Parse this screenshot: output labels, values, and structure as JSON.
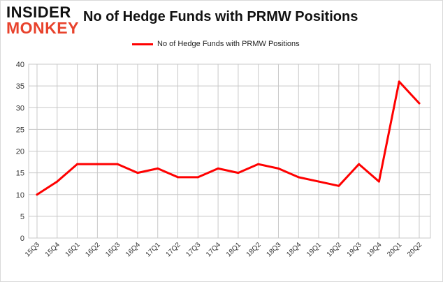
{
  "logo": {
    "line1": "INSIDER",
    "line2": "MONKEY"
  },
  "colors": {
    "series": "#ff0000",
    "grid": "#c8c8c8",
    "logo_accent": "#e8422c"
  },
  "chart_data": {
    "type": "line",
    "title": "No of Hedge Funds with PRMW Positions",
    "xlabel": "",
    "ylabel": "",
    "legend_position": "top-center",
    "grid": true,
    "ylim": [
      0,
      40
    ],
    "yticks": [
      0,
      5,
      10,
      15,
      20,
      25,
      30,
      35,
      40
    ],
    "categories": [
      "15Q3",
      "15Q4",
      "16Q1",
      "16Q2",
      "16Q3",
      "16Q4",
      "17Q1",
      "17Q2",
      "17Q3",
      "17Q4",
      "18Q1",
      "18Q2",
      "18Q3",
      "18Q4",
      "19Q1",
      "19Q2",
      "19Q3",
      "19Q4",
      "20Q1",
      "20Q2"
    ],
    "series": [
      {
        "name": "No of Hedge Funds with PRMW Positions",
        "values": [
          10,
          13,
          17,
          17,
          17,
          15,
          16,
          14,
          14,
          16,
          15,
          17,
          16,
          14,
          13,
          12,
          17,
          13,
          36,
          31
        ]
      }
    ]
  }
}
